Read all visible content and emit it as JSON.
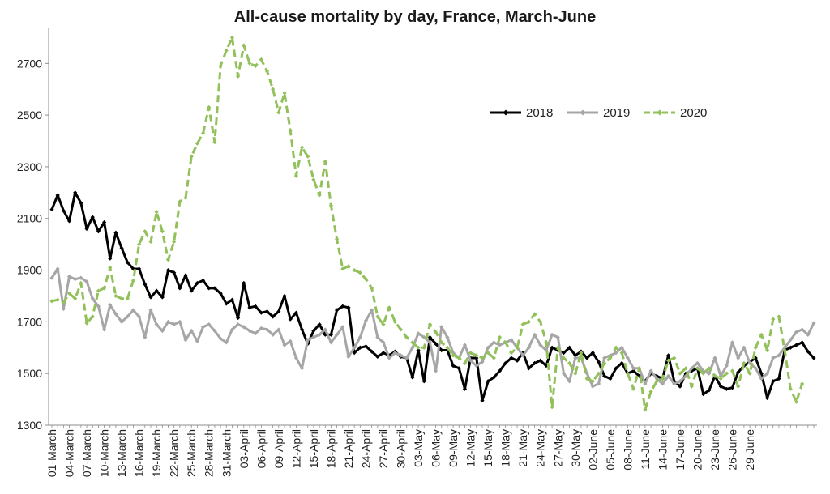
{
  "chart_data": {
    "type": "line",
    "title": "All-cause mortality by day, France,  March-June",
    "xlabel": "",
    "ylabel": "",
    "ylim": [
      1300,
      2820
    ],
    "yticks": [
      1300,
      1500,
      1700,
      1900,
      2100,
      2300,
      2500,
      2700
    ],
    "grid": false,
    "legend": "top-right",
    "x_tick_labels": [
      "01-March",
      "04-March",
      "07-March",
      "10-March",
      "13-March",
      "16-March",
      "19-March",
      "22-March",
      "25-March",
      "28-March",
      "31-March",
      "03-April",
      "06-April",
      "09-April",
      "12-April",
      "15-April",
      "18-April",
      "21-April",
      "24-April",
      "27-April",
      "30-April",
      "03-May",
      "06-May",
      "09-May",
      "12-May",
      "15-May",
      "18-May",
      "21-May",
      "24-May",
      "27-May",
      "30-May",
      "02-June",
      "05-June",
      "08-June",
      "11-June",
      "14-June",
      "17-June",
      "20-June",
      "23-June",
      "26-June",
      "29-June"
    ],
    "series": [
      {
        "name": "2018",
        "color": "#000000",
        "style": "solid",
        "values": [
          2135,
          2190,
          2130,
          2090,
          2200,
          2160,
          2060,
          2105,
          2050,
          2085,
          1945,
          2045,
          1985,
          1930,
          1905,
          1905,
          1845,
          1795,
          1820,
          1795,
          1900,
          1890,
          1830,
          1880,
          1820,
          1850,
          1860,
          1830,
          1830,
          1810,
          1770,
          1785,
          1715,
          1850,
          1755,
          1760,
          1735,
          1740,
          1720,
          1740,
          1800,
          1710,
          1735,
          1670,
          1615,
          1665,
          1690,
          1650,
          1650,
          1745,
          1760,
          1755,
          1580,
          1600,
          1605,
          1585,
          1565,
          1580,
          1570,
          1585,
          1565,
          1560,
          1485,
          1590,
          1470,
          1640,
          1615,
          1590,
          1590,
          1530,
          1520,
          1440,
          1560,
          1560,
          1395,
          1470,
          1485,
          1510,
          1540,
          1560,
          1550,
          1580,
          1520,
          1540,
          1550,
          1530,
          1600,
          1590,
          1580,
          1600,
          1570,
          1585,
          1560,
          1580,
          1545,
          1490,
          1480,
          1520,
          1540,
          1500,
          1510,
          1490,
          1470,
          1500,
          1490,
          1480,
          1570,
          1470,
          1450,
          1500,
          1510,
          1520,
          1420,
          1435,
          1490,
          1450,
          1440,
          1445,
          1505,
          1530,
          1545,
          1560,
          1500,
          1405,
          1470,
          1480,
          1590,
          1600,
          1610,
          1620,
          1585,
          1560
        ]
      },
      {
        "name": "2019",
        "color": "#a6a6a6",
        "style": "solid",
        "values": [
          1870,
          1905,
          1750,
          1875,
          1865,
          1870,
          1855,
          1790,
          1760,
          1670,
          1765,
          1730,
          1700,
          1720,
          1745,
          1720,
          1640,
          1745,
          1690,
          1665,
          1700,
          1690,
          1700,
          1630,
          1665,
          1625,
          1680,
          1690,
          1665,
          1635,
          1620,
          1670,
          1690,
          1680,
          1665,
          1655,
          1675,
          1670,
          1650,
          1670,
          1610,
          1625,
          1560,
          1520,
          1630,
          1640,
          1650,
          1670,
          1620,
          1650,
          1680,
          1565,
          1600,
          1640,
          1705,
          1745,
          1640,
          1620,
          1560,
          1580,
          1570,
          1560,
          1600,
          1655,
          1640,
          1620,
          1510,
          1680,
          1640,
          1580,
          1560,
          1610,
          1550,
          1530,
          1545,
          1600,
          1620,
          1610,
          1620,
          1630,
          1600,
          1570,
          1600,
          1650,
          1610,
          1590,
          1650,
          1640,
          1500,
          1470,
          1560,
          1560,
          1500,
          1450,
          1460,
          1560,
          1570,
          1580,
          1600,
          1560,
          1520,
          1520,
          1460,
          1510,
          1480,
          1460,
          1490,
          1460,
          1470,
          1490,
          1520,
          1540,
          1510,
          1500,
          1560,
          1490,
          1530,
          1620,
          1560,
          1600,
          1540,
          1520,
          1480,
          1500,
          1560,
          1570,
          1600,
          1630,
          1660,
          1670,
          1650,
          1695
        ]
      },
      {
        "name": "2020",
        "color": "#92c05a",
        "style": "dashed",
        "values": [
          1780,
          1785,
          1775,
          1810,
          1790,
          1850,
          1695,
          1720,
          1820,
          1830,
          1910,
          1800,
          1790,
          1790,
          1860,
          2000,
          2050,
          2010,
          2125,
          2050,
          1940,
          2010,
          2165,
          2180,
          2340,
          2390,
          2430,
          2530,
          2395,
          2690,
          2750,
          2800,
          2650,
          2770,
          2700,
          2690,
          2715,
          2670,
          2600,
          2510,
          2585,
          2440,
          2265,
          2375,
          2340,
          2250,
          2190,
          2320,
          2150,
          2020,
          1905,
          1915,
          1900,
          1890,
          1865,
          1830,
          1720,
          1690,
          1755,
          1700,
          1670,
          1640,
          1620,
          1600,
          1600,
          1690,
          1660,
          1620,
          1600,
          1570,
          1560,
          1540,
          1580,
          1570,
          1560,
          1580,
          1560,
          1640,
          1620,
          1580,
          1600,
          1690,
          1700,
          1730,
          1700,
          1620,
          1370,
          1600,
          1560,
          1540,
          1500,
          1580,
          1480,
          1470,
          1500,
          1540,
          1560,
          1600,
          1580,
          1500,
          1440,
          1520,
          1360,
          1430,
          1470,
          1480,
          1550,
          1560,
          1500,
          1520,
          1450,
          1520,
          1500,
          1520,
          1490,
          1480,
          1500,
          1510,
          1450,
          1540,
          1500,
          1600,
          1650,
          1590,
          1710,
          1720,
          1590,
          1440,
          1390,
          1460
        ]
      }
    ]
  }
}
